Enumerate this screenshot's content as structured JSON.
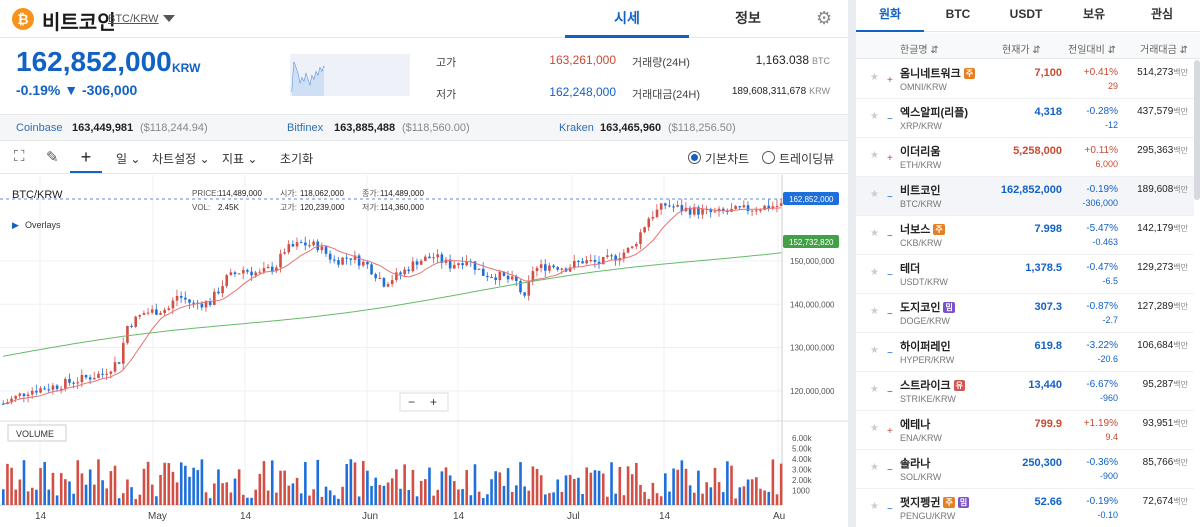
{
  "header": {
    "coin_icon": "bitcoin-icon",
    "coin_name": "비트코인",
    "pair": "BTC/KRW",
    "tabs": [
      "시세",
      "정보"
    ]
  },
  "price": {
    "current": "162,852,000",
    "unit": "KRW",
    "change": "-0.19% ▼ -306,000",
    "high_label": "고가",
    "high": "163,261,000",
    "low_label": "저가",
    "low": "162,248,000",
    "volume_label": "거래량(24H)",
    "volume": "1,163.038",
    "volume_unit": "BTC",
    "amount_label": "거래대금(24H)",
    "amount": "189,608,311,678",
    "amount_unit": "KRW"
  },
  "exchanges": [
    {
      "name": "Coinbase",
      "price": "163,449,981",
      "usd": "($118,244.94)"
    },
    {
      "name": "Bitfinex",
      "price": "163,885,488",
      "usd": "($118,560.00)"
    },
    {
      "name": "Kraken",
      "price": "163,465,960",
      "usd": "($118,256.50)"
    }
  ],
  "toolbar": {
    "interval": "일",
    "chart_settings": "차트설정",
    "indicators": "지표",
    "reset": "초기화",
    "basic_chart": "기본차트",
    "tradingview": "트레이딩뷰"
  },
  "chart_info": {
    "symbol": "BTC/KRW",
    "overlays": "Overlays",
    "volume_label": "VOLUME",
    "price_lbl": "PRICE:",
    "price_val": "114,489,000",
    "open_lbl": "시가:",
    "open_val": "118,062,000",
    "close_lbl": "종가:",
    "close_val": "114,489,000",
    "vol_lbl": "VOL:",
    "vol_val": "2.45K",
    "hi_lbl": "고가:",
    "hi_val": "120,239,000",
    "lo_lbl": "저가:",
    "lo_val": "114,360,000",
    "last_tag": "162,852,000",
    "ma_tag": "152,732,820",
    "y_ticks": [
      "150,000,000",
      "140,000,000",
      "130,000,000",
      "120,000,000"
    ],
    "vol_ticks": [
      "6.00k",
      "5.00k",
      "4.00k",
      "3.00k",
      "2.00k",
      "1000"
    ],
    "x_ticks": [
      "14",
      "May",
      "14",
      "Jun",
      "14",
      "Jul",
      "14",
      "Au"
    ],
    "colors": {
      "up": "#d24f45",
      "down": "#1e6fd9",
      "ma_short": "#e57373",
      "ma_long": "#66bb6a"
    }
  },
  "chart_data": {
    "type": "candlestick",
    "y_range": [
      110000000,
      168000000
    ],
    "x_labels": [
      "14",
      "May",
      "14",
      "Jun",
      "14",
      "Jul",
      "14",
      "Au"
    ],
    "last_price": 162852000,
    "ma_value": 152732820
  },
  "market": {
    "tabs": [
      "원화",
      "BTC",
      "USDT",
      "보유",
      "관심"
    ],
    "columns": [
      "한글명 ⇵",
      "현재가 ⇵",
      "전일대비 ⇵",
      "거래대금 ⇵"
    ],
    "vol_unit": "백만",
    "rows": [
      {
        "name": "옴니네트워크",
        "badge": "주",
        "badge_c": "b-o",
        "market": "OMNI/KRW",
        "price": "7,100",
        "pct": "+0.41%",
        "amt": "29",
        "vol": "514,273",
        "dir": "up"
      },
      {
        "name": "엑스알피(리플)",
        "badge": "",
        "badge_c": "",
        "market": "XRP/KRW",
        "price": "4,318",
        "pct": "-0.28%",
        "amt": "-12",
        "vol": "437,579",
        "dir": "dn"
      },
      {
        "name": "이더리움",
        "badge": "",
        "badge_c": "",
        "market": "ETH/KRW",
        "price": "5,258,000",
        "pct": "+0.11%",
        "amt": "6,000",
        "vol": "295,363",
        "dir": "up"
      },
      {
        "name": "비트코인",
        "badge": "",
        "badge_c": "",
        "market": "BTC/KRW",
        "price": "162,852,000",
        "pct": "-0.19%",
        "amt": "-306,000",
        "vol": "189,608",
        "dir": "dn"
      },
      {
        "name": "너보스",
        "badge": "주",
        "badge_c": "b-o",
        "market": "CKB/KRW",
        "price": "7.998",
        "pct": "-5.47%",
        "amt": "-0.463",
        "vol": "142,179",
        "dir": "dn"
      },
      {
        "name": "테더",
        "badge": "",
        "badge_c": "",
        "market": "USDT/KRW",
        "price": "1,378.5",
        "pct": "-0.47%",
        "amt": "-6.5",
        "vol": "129,273",
        "dir": "dn"
      },
      {
        "name": "도지코인",
        "badge": "밈",
        "badge_c": "b-p",
        "market": "DOGE/KRW",
        "price": "307.3",
        "pct": "-0.87%",
        "amt": "-2.7",
        "vol": "127,289",
        "dir": "dn"
      },
      {
        "name": "하이퍼레인",
        "badge": "",
        "badge_c": "",
        "market": "HYPER/KRW",
        "price": "619.8",
        "pct": "-3.22%",
        "amt": "-20.6",
        "vol": "106,684",
        "dir": "dn"
      },
      {
        "name": "스트라이크",
        "badge": "유",
        "badge_c": "b-r",
        "market": "STRIKE/KRW",
        "price": "13,440",
        "pct": "-6.67%",
        "amt": "-960",
        "vol": "95,287",
        "dir": "dn"
      },
      {
        "name": "에테나",
        "badge": "",
        "badge_c": "",
        "market": "ENA/KRW",
        "price": "799.9",
        "pct": "+1.19%",
        "amt": "9.4",
        "vol": "93,951",
        "dir": "up"
      },
      {
        "name": "솔라나",
        "badge": "",
        "badge_c": "",
        "market": "SOL/KRW",
        "price": "250,300",
        "pct": "-0.36%",
        "amt": "-900",
        "vol": "85,766",
        "dir": "dn"
      },
      {
        "name": "펏지펭귄",
        "badge": "주",
        "badge_c": "b-o",
        "badge2": "밈",
        "badge2_c": "b-p",
        "market": "PENGU/KRW",
        "price": "52.66",
        "pct": "-0.19%",
        "amt": "-0.10",
        "vol": "72,674",
        "dir": "dn"
      }
    ]
  }
}
